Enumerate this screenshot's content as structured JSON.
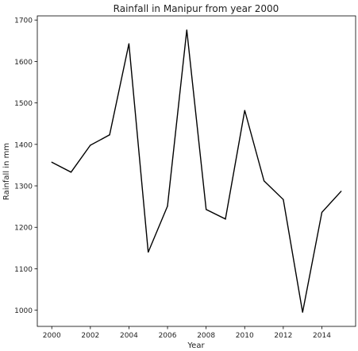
{
  "chart_data": {
    "type": "line",
    "title": "Rainfall in Manipur from year 2000",
    "xlabel": "Year",
    "ylabel": "Rainfall in mm",
    "x": [
      2000,
      2001,
      2002,
      2003,
      2004,
      2005,
      2006,
      2007,
      2008,
      2009,
      2010,
      2011,
      2012,
      2013,
      2014,
      2015
    ],
    "series": [
      {
        "values": [
          1357,
          1333,
          1398,
          1423,
          1643,
          1140,
          1251,
          1676,
          1243,
          1220,
          1482,
          1312,
          1267,
          995,
          1236,
          1287
        ]
      }
    ],
    "xlim": [
      1999.25,
      2015.75
    ],
    "ylim": [
      961,
      1710
    ],
    "xticks": [
      2000,
      2002,
      2004,
      2006,
      2008,
      2010,
      2012,
      2014
    ],
    "yticks": [
      1000,
      1100,
      1200,
      1300,
      1400,
      1500,
      1600,
      1700
    ],
    "xtick_labels": [
      "2000",
      "2002",
      "2004",
      "2006",
      "2008",
      "2010",
      "2012",
      "2014"
    ],
    "ytick_labels": [
      "1000",
      "1100",
      "1200",
      "1300",
      "1400",
      "1500",
      "1600",
      "1700"
    ],
    "line_color": "#000000",
    "grid": false,
    "legend": "none"
  }
}
